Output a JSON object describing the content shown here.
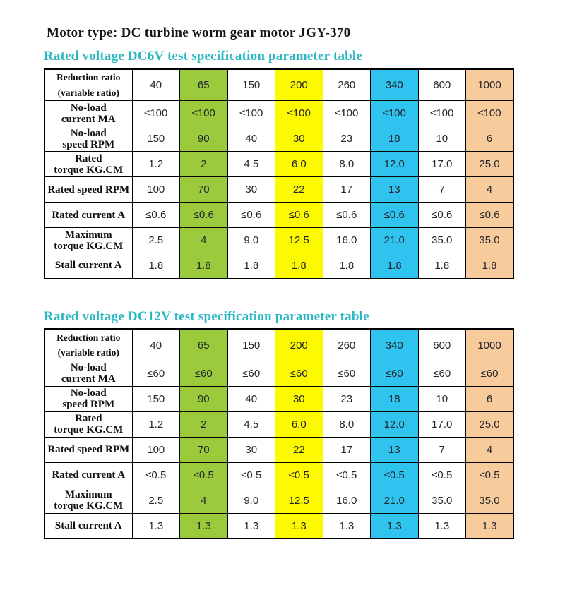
{
  "page_title": "Motor type: DC turbine worm gear motor JGY-370",
  "colors": {
    "green": "#9bcb3c",
    "yellow": "#fdf900",
    "cyan": "#2fc3ef",
    "peach": "#f7cb9c",
    "teal": "#2bb8c3"
  },
  "column_highlights": {
    "1": "green",
    "3": "yellow",
    "5": "cyan",
    "7": "peach"
  },
  "tables": [
    {
      "title": "Rated voltage DC6V test specification parameter table",
      "rows": [
        {
          "label_lines": [
            "Reduction ratio",
            "(variable ratio)"
          ],
          "values": [
            "40",
            "65",
            "150",
            "200",
            "260",
            "340",
            "600",
            "1000"
          ]
        },
        {
          "label_lines": [
            "No-load",
            "current MA"
          ],
          "values": [
            "≤100",
            "≤100",
            "≤100",
            "≤100",
            "≤100",
            "≤100",
            "≤100",
            "≤100"
          ]
        },
        {
          "label_lines": [
            "No-load",
            "speed RPM"
          ],
          "values": [
            "150",
            "90",
            "40",
            "30",
            "23",
            "18",
            "10",
            "6"
          ]
        },
        {
          "label_lines": [
            "Rated",
            "torque KG.CM"
          ],
          "values": [
            "1.2",
            "2",
            "4.5",
            "6.0",
            "8.0",
            "12.0",
            "17.0",
            "25.0"
          ]
        },
        {
          "label_lines": [
            "Rated speed RPM"
          ],
          "values": [
            "100",
            "70",
            "30",
            "22",
            "17",
            "13",
            "7",
            "4"
          ]
        },
        {
          "label_lines": [
            "Rated current A"
          ],
          "values": [
            "≤0.6",
            "≤0.6",
            "≤0.6",
            "≤0.6",
            "≤0.6",
            "≤0.6",
            "≤0.6",
            "≤0.6"
          ]
        },
        {
          "label_lines": [
            "Maximum",
            "torque KG.CM"
          ],
          "values": [
            "2.5",
            "4",
            "9.0",
            "12.5",
            "16.0",
            "21.0",
            "35.0",
            "35.0"
          ]
        },
        {
          "label_lines": [
            "Stall current A"
          ],
          "values": [
            "1.8",
            "1.8",
            "1.8",
            "1.8",
            "1.8",
            "1.8",
            "1.8",
            "1.8"
          ]
        }
      ]
    },
    {
      "title": "Rated voltage DC12V test specification parameter table",
      "rows": [
        {
          "label_lines": [
            "Reduction ratio",
            "(variable ratio)"
          ],
          "values": [
            "40",
            "65",
            "150",
            "200",
            "260",
            "340",
            "600",
            "1000"
          ]
        },
        {
          "label_lines": [
            "No-load",
            "current MA"
          ],
          "values": [
            "≤60",
            "≤60",
            "≤60",
            "≤60",
            "≤60",
            "≤60",
            "≤60",
            "≤60"
          ]
        },
        {
          "label_lines": [
            "No-load",
            "speed RPM"
          ],
          "values": [
            "150",
            "90",
            "40",
            "30",
            "23",
            "18",
            "10",
            "6"
          ]
        },
        {
          "label_lines": [
            "Rated",
            "torque KG.CM"
          ],
          "values": [
            "1.2",
            "2",
            "4.5",
            "6.0",
            "8.0",
            "12.0",
            "17.0",
            "25.0"
          ]
        },
        {
          "label_lines": [
            "Rated speed RPM"
          ],
          "values": [
            "100",
            "70",
            "30",
            "22",
            "17",
            "13",
            "7",
            "4"
          ]
        },
        {
          "label_lines": [
            "Rated current A"
          ],
          "values": [
            "≤0.5",
            "≤0.5",
            "≤0.5",
            "≤0.5",
            "≤0.5",
            "≤0.5",
            "≤0.5",
            "≤0.5"
          ]
        },
        {
          "label_lines": [
            "Maximum",
            "torque KG.CM"
          ],
          "values": [
            "2.5",
            "4",
            "9.0",
            "12.5",
            "16.0",
            "21.0",
            "35.0",
            "35.0"
          ]
        },
        {
          "label_lines": [
            "Stall current A"
          ],
          "values": [
            "1.3",
            "1.3",
            "1.3",
            "1.3",
            "1.3",
            "1.3",
            "1.3",
            "1.3"
          ]
        }
      ]
    }
  ]
}
